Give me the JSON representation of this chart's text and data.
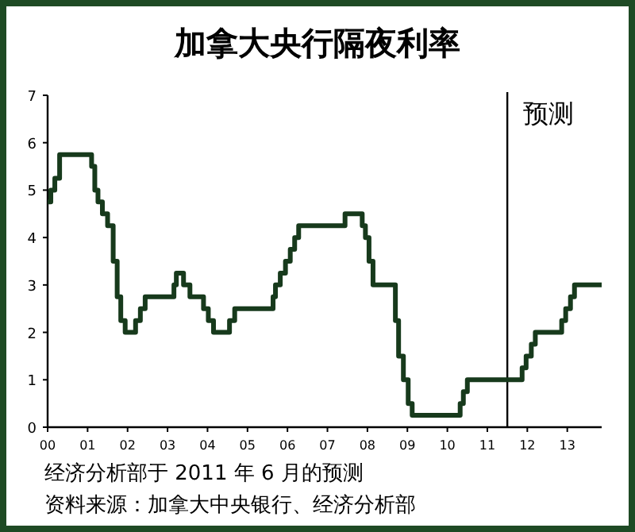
{
  "chart_data": {
    "type": "step",
    "title": "加拿大央行隔夜利率",
    "x": [
      2000.0,
      2000.08,
      2000.18,
      2000.3,
      2001.1,
      2001.18,
      2001.26,
      2001.37,
      2001.5,
      2001.64,
      2001.74,
      2001.83,
      2001.94,
      2002.2,
      2002.32,
      2002.44,
      2003.16,
      2003.22,
      2003.4,
      2003.56,
      2003.9,
      2004.02,
      2004.15,
      2004.55,
      2004.68,
      2005.64,
      2005.7,
      2005.82,
      2005.95,
      2006.07,
      2006.18,
      2006.28,
      2007.44,
      2007.87,
      2007.95,
      2008.04,
      2008.14,
      2008.7,
      2008.78,
      2008.9,
      2009.02,
      2009.12,
      2010.32,
      2010.4,
      2010.5,
      2011.87,
      2011.97,
      2012.1,
      2012.2,
      2012.86,
      2012.96,
      2013.08,
      2013.18,
      2013.86
    ],
    "values": [
      4.75,
      5.0,
      5.25,
      5.75,
      5.5,
      5.0,
      4.75,
      4.5,
      4.25,
      3.5,
      2.75,
      2.25,
      2.0,
      2.25,
      2.5,
      2.75,
      3.0,
      3.25,
      3.0,
      2.75,
      2.5,
      2.25,
      2.0,
      2.25,
      2.5,
      2.75,
      3.0,
      3.25,
      3.5,
      3.75,
      4.0,
      4.25,
      4.5,
      4.25,
      4.0,
      3.5,
      3.0,
      2.25,
      1.5,
      1.0,
      0.5,
      0.25,
      0.5,
      0.75,
      1.0,
      1.25,
      1.5,
      1.75,
      2.0,
      2.25,
      2.5,
      2.75,
      3.0,
      3.0
    ],
    "color": "#173a1c",
    "xlim": [
      2000,
      2013.86
    ],
    "ylim": [
      0,
      7
    ],
    "xticks": [
      {
        "value": 2000,
        "label": "00"
      },
      {
        "value": 2001,
        "label": "01"
      },
      {
        "value": 2002,
        "label": "02"
      },
      {
        "value": 2003,
        "label": "03"
      },
      {
        "value": 2004,
        "label": "04"
      },
      {
        "value": 2005,
        "label": "05"
      },
      {
        "value": 2006,
        "label": "06"
      },
      {
        "value": 2007,
        "label": "07"
      },
      {
        "value": 2008,
        "label": "08"
      },
      {
        "value": 2009,
        "label": "09"
      },
      {
        "value": 2010,
        "label": "10"
      },
      {
        "value": 2011,
        "label": "11"
      },
      {
        "value": 2012,
        "label": "12"
      },
      {
        "value": 2013,
        "label": "13"
      }
    ],
    "yticks": [
      0,
      1,
      2,
      3,
      4,
      5,
      6,
      7
    ],
    "ref_lines": [
      {
        "axis": "x",
        "value": 2011.5,
        "label": "预测",
        "color": "#000000"
      }
    ],
    "annotations": [
      "经济分析部于 2011 年 6 月的预测",
      "资料来源：加拿大中央银行、经济分析部"
    ],
    "line_style": "solid"
  }
}
